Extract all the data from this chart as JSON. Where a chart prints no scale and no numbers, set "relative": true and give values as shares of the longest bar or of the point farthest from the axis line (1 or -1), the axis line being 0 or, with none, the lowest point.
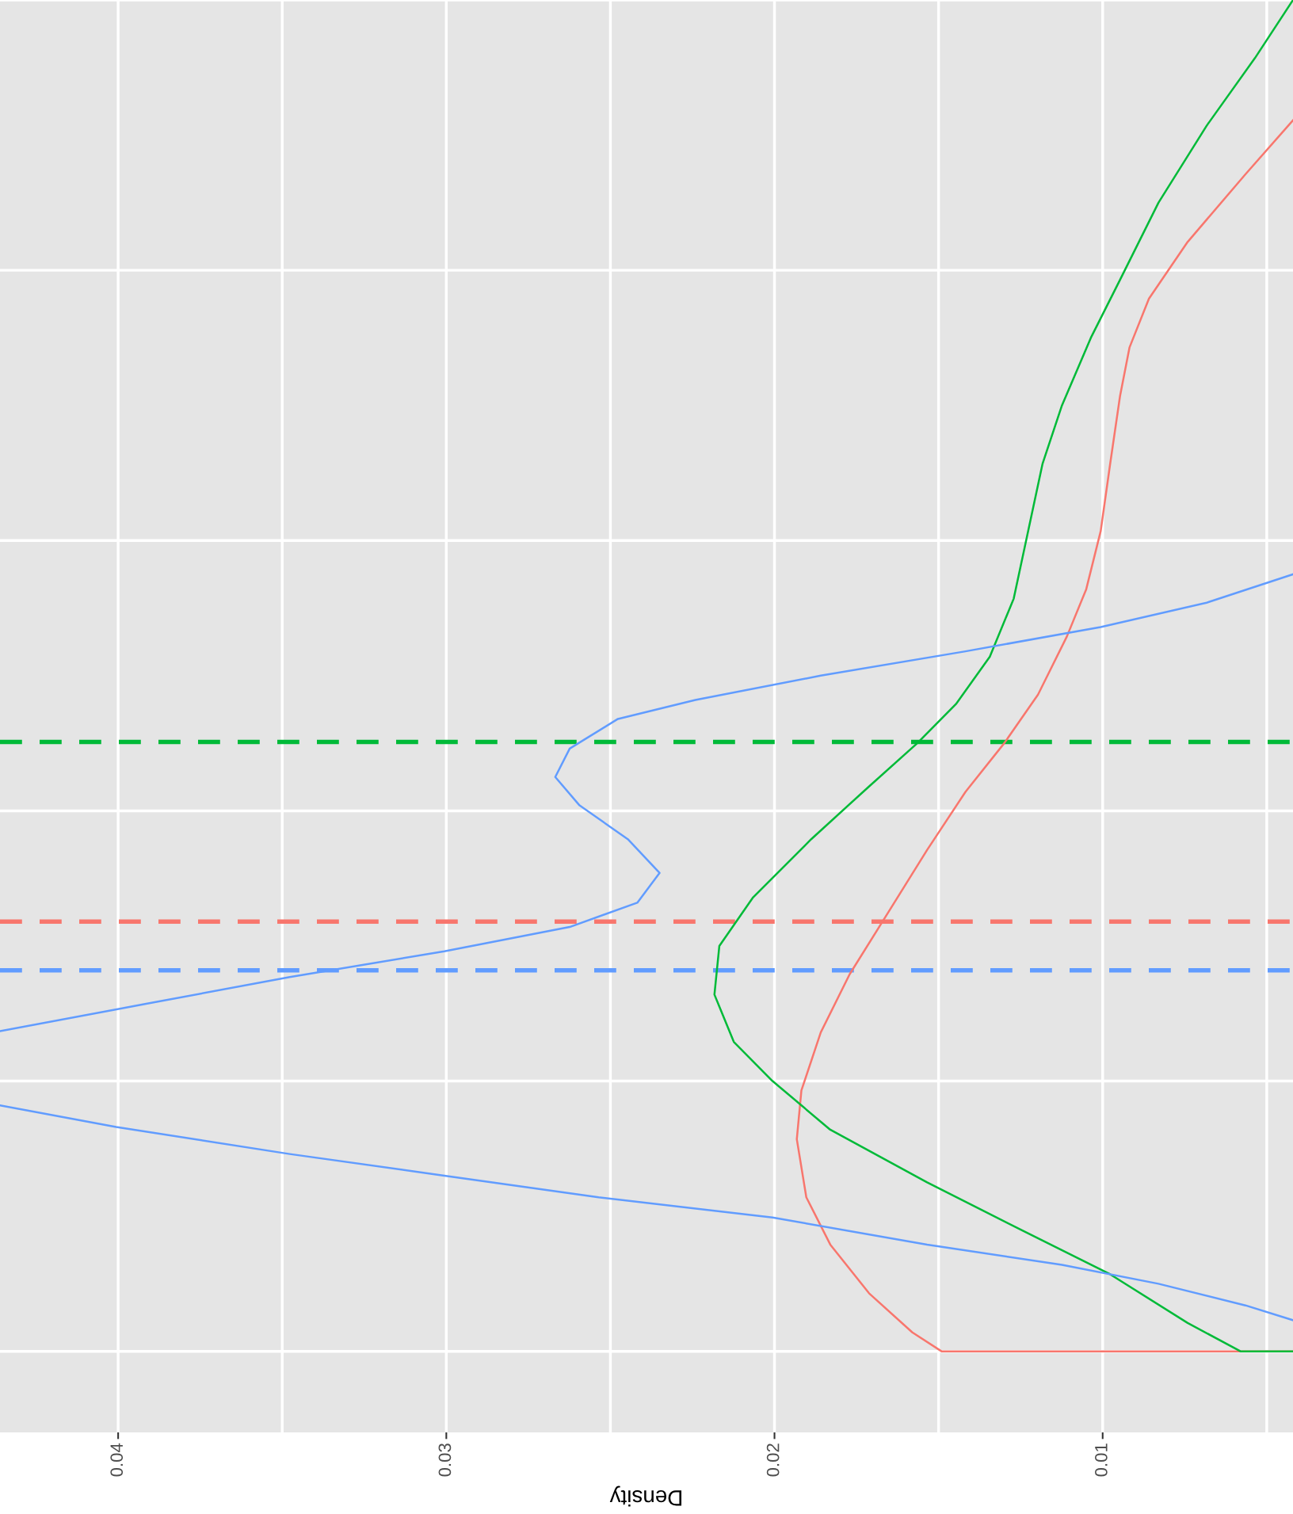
{
  "chart_data": {
    "type": "line",
    "xlabel": "Density",
    "relative": true,
    "xlim": [
      0.0436,
      0.0042
    ],
    "xticks": [
      0.04,
      0.03,
      0.02,
      0.01,
      {
        "value": 0.035,
        "label": null
      },
      {
        "value": 0.025,
        "label": null
      },
      {
        "value": 0.015,
        "label": null
      },
      {
        "value": 0.005,
        "label": null
      }
    ],
    "tick_labels": "x",
    "grid": true,
    "line_style": "solid",
    "marker": "none",
    "series": [
      {
        "color": "#f8766d",
        "x": [
          0.0042,
          0.00565,
          0.00741,
          0.00859,
          0.00918,
          0.00947,
          0.00977,
          0.01006,
          0.0105,
          0.01109,
          0.01197,
          0.013,
          0.01418,
          0.01535,
          0.01653,
          0.01771,
          0.01859,
          0.01918,
          0.01932,
          0.01903,
          0.0183,
          0.01712,
          0.0158,
          0.01491,
          0.0058,
          0.0042
        ],
        "values": [
          0.911,
          0.871,
          0.821,
          0.779,
          0.743,
          0.707,
          0.657,
          0.607,
          0.564,
          0.529,
          0.486,
          0.45,
          0.414,
          0.371,
          0.325,
          0.279,
          0.236,
          0.193,
          0.157,
          0.114,
          0.079,
          0.043,
          0.014,
          0,
          0,
          0
        ]
      },
      {
        "color": "#00ba38",
        "x": [
          0.0042,
          0.00536,
          0.00683,
          0.0083,
          0.00947,
          0.01036,
          0.01124,
          0.01183,
          0.01227,
          0.01271,
          0.01344,
          0.01447,
          0.01565,
          0.01712,
          0.01888,
          0.02065,
          0.02168,
          0.02183,
          0.02124,
          0.02006,
          0.0183,
          0.01535,
          0.01241,
          0.00977,
          0.00741,
          0.0058,
          0.0042
        ],
        "values": [
          1,
          0.957,
          0.907,
          0.85,
          0.793,
          0.75,
          0.7,
          0.657,
          0.607,
          0.557,
          0.514,
          0.479,
          0.45,
          0.418,
          0.379,
          0.336,
          0.3,
          0.264,
          0.229,
          0.2,
          0.164,
          0.125,
          0.089,
          0.057,
          0.021,
          0,
          0
        ]
      },
      {
        "color": "#619cff",
        "x": [
          0.0042,
          0.00683,
          0.01006,
          0.01418,
          0.01859,
          0.02241,
          0.02477,
          0.02624,
          0.02668,
          0.02594,
          0.02447,
          0.0235,
          0.02418,
          0.02624,
          0.03006,
          0.03477,
          0.03918,
          0.0436,
          null,
          0.0436,
          0.04006,
          0.03477,
          0.03006,
          0.02536,
          0.02006,
          0.01535,
          0.01124,
          0.0083,
          0.00565,
          0.0042
        ],
        "values": [
          0.575,
          0.554,
          0.536,
          0.518,
          0.5,
          0.482,
          0.468,
          0.446,
          0.425,
          0.404,
          0.379,
          0.354,
          0.332,
          0.314,
          0.296,
          0.277,
          0.257,
          0.237,
          null,
          0.182,
          0.166,
          0.146,
          0.13,
          0.114,
          0.099,
          0.079,
          0.064,
          0.05,
          0.034,
          0.023
        ]
      }
    ],
    "ref_lines": [
      {
        "axis": "y",
        "value": 0.451,
        "label": null,
        "color": "#00ba38",
        "line_style": "dashed"
      },
      {
        "axis": "y",
        "value": 0.318,
        "label": null,
        "color": "#f8766d",
        "line_style": "dashed"
      },
      {
        "axis": "y",
        "value": 0.282,
        "label": null,
        "color": "#619cff",
        "line_style": "dashed"
      }
    ]
  }
}
